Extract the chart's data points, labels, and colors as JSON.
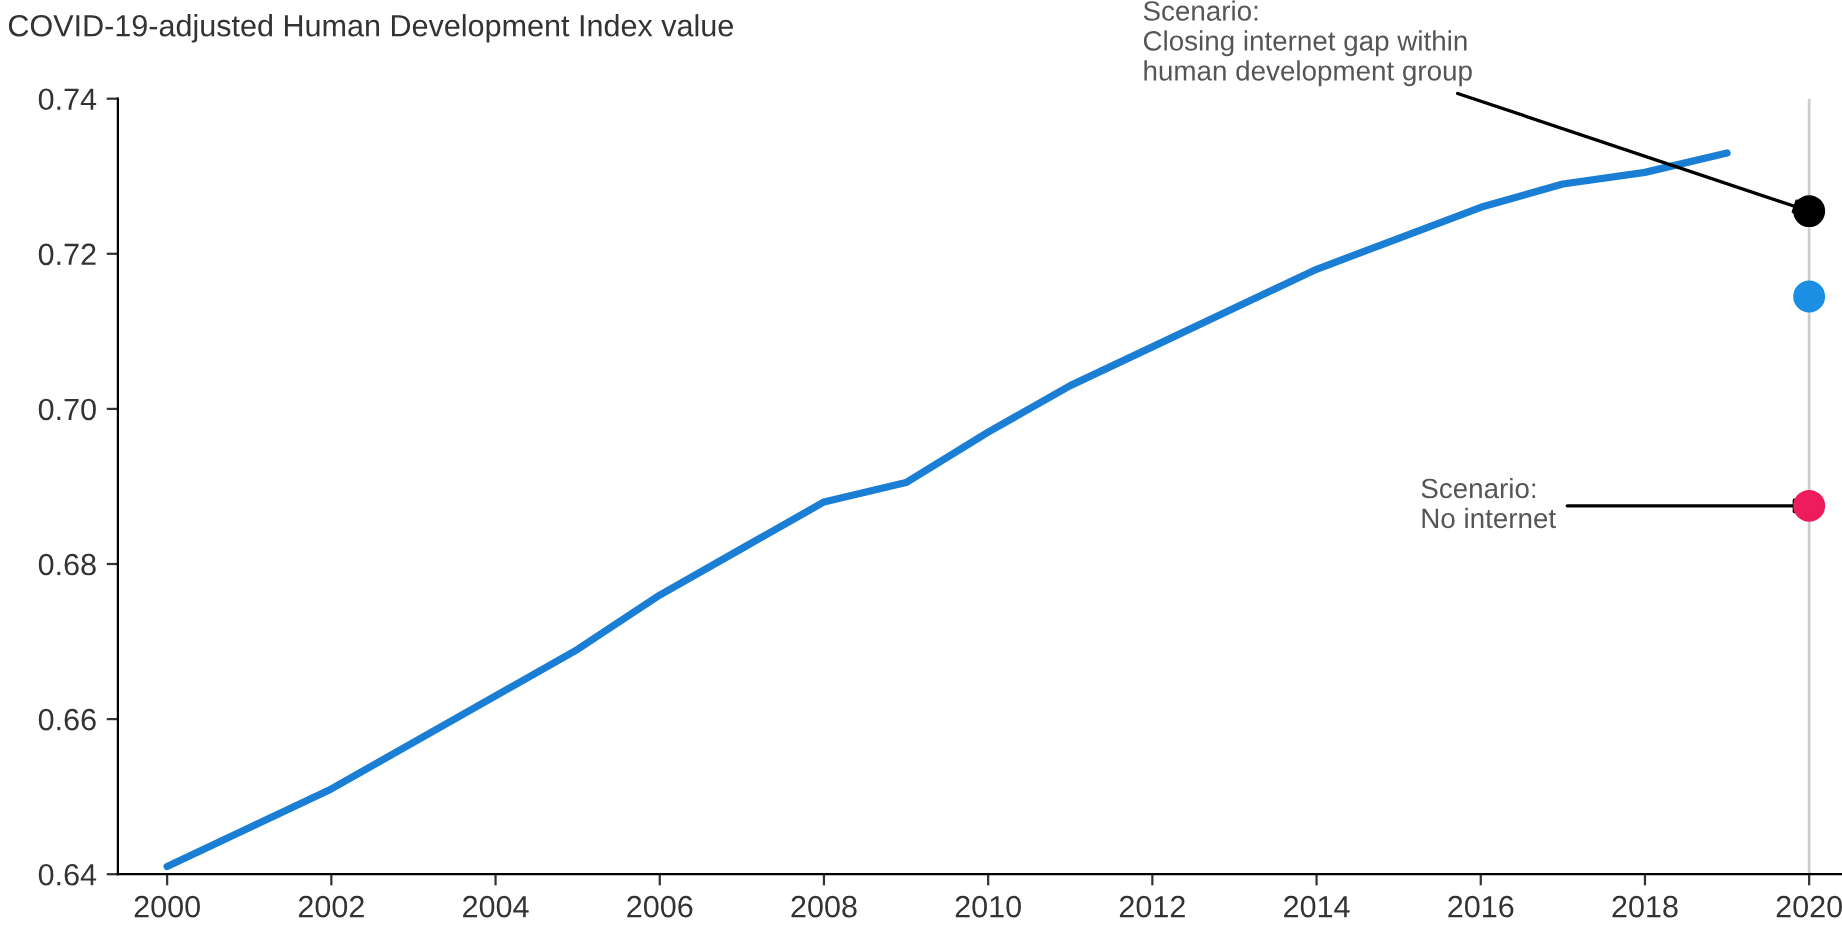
{
  "chart_data": {
    "type": "line",
    "ylabel": "COVID-19-adjusted Human Development Index value",
    "xlim": [
      1999.4,
      2020.4
    ],
    "xticks": [
      2000,
      2002,
      2004,
      2006,
      2008,
      2010,
      2012,
      2014,
      2016,
      2018,
      2020
    ],
    "ylim": [
      0.64,
      0.74
    ],
    "yticks": [
      {
        "value": 0.64,
        "label": "0.64"
      },
      {
        "value": 0.66,
        "label": "0.66"
      },
      {
        "value": 0.68,
        "label": "0.68"
      },
      {
        "value": 0.7,
        "label": "0.70"
      },
      {
        "value": 0.72,
        "label": "0.72"
      },
      {
        "value": 0.74,
        "label": "0.74"
      }
    ],
    "grid": false,
    "legend": false,
    "series": [
      {
        "color": "#1a7fd4",
        "x": [
          2000,
          2001,
          2002,
          2003,
          2004,
          2005,
          2006,
          2007,
          2008,
          2009,
          2010,
          2011,
          2012,
          2013,
          2014,
          2015,
          2016,
          2017,
          2018,
          2019
        ],
        "values": [
          0.641,
          0.646,
          0.651,
          0.657,
          0.663,
          0.669,
          0.676,
          0.682,
          0.688,
          0.6905,
          0.697,
          0.703,
          0.708,
          0.713,
          0.718,
          0.722,
          0.726,
          0.729,
          0.7305,
          0.733
        ]
      },
      {
        "type": "scatter",
        "color": "#000000",
        "x": [
          2020
        ],
        "values": [
          0.7255
        ]
      },
      {
        "type": "scatter",
        "color": "#1a8fe3",
        "x": [
          2020
        ],
        "values": [
          0.7145
        ]
      },
      {
        "type": "scatter",
        "color": "#ee1c5c",
        "x": [
          2020
        ],
        "values": [
          0.6875
        ]
      }
    ],
    "ref_lines": [
      {
        "axis": "x",
        "value": 2020,
        "color": "#cccccc"
      }
    ],
    "annotations": [
      {
        "text": "Scenario:\nClosing internet gap within\nhuman development group",
        "x": 2020,
        "y": 0.7255
      },
      {
        "text": "Scenario:\nNo internet",
        "x": 2020,
        "y": 0.6875
      }
    ]
  }
}
